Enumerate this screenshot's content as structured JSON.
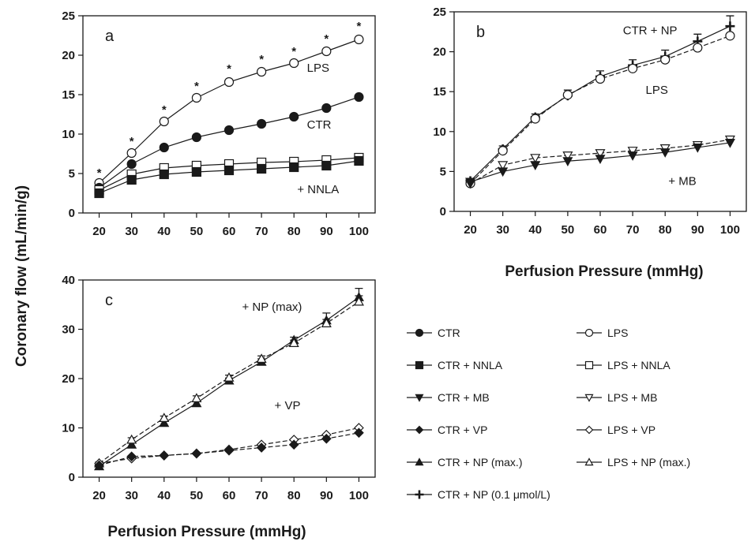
{
  "figure": {
    "ylabel": "Coronary flow (mL/min/g)",
    "xlabel": "Perfusion Pressure (mmHg)"
  },
  "legend": [
    {
      "label": "CTR",
      "marker": "circle",
      "fill": "filled"
    },
    {
      "label": "LPS",
      "marker": "circle",
      "fill": "open"
    },
    {
      "label": "CTR + NNLA",
      "marker": "square",
      "fill": "filled"
    },
    {
      "label": "LPS + NNLA",
      "marker": "square",
      "fill": "open"
    },
    {
      "label": "CTR + MB",
      "marker": "triangle-down",
      "fill": "filled"
    },
    {
      "label": "LPS + MB",
      "marker": "triangle-down",
      "fill": "open"
    },
    {
      "label": "CTR + VP",
      "marker": "diamond",
      "fill": "filled"
    },
    {
      "label": "LPS + VP",
      "marker": "diamond",
      "fill": "open"
    },
    {
      "label": "CTR + NP (max.)",
      "marker": "triangle-up",
      "fill": "filled"
    },
    {
      "label": "LPS + NP (max.)",
      "marker": "triangle-up",
      "fill": "open"
    },
    {
      "label": "CTR + NP (0.1 μmol/L)",
      "marker": "plus",
      "fill": "filled"
    }
  ],
  "chart_data": [
    {
      "type": "line",
      "panel": "a",
      "x": [
        20,
        30,
        40,
        50,
        60,
        70,
        80,
        90,
        100
      ],
      "xticks": [
        "20",
        "30",
        "40",
        "50",
        "60",
        "70",
        "80",
        "90",
        "100"
      ],
      "yticks": [
        "0",
        "5",
        "10",
        "15",
        "20",
        "25"
      ],
      "ylim": [
        0,
        25
      ],
      "series": [
        {
          "legend": "LPS",
          "marker": "circle",
          "fill": "open",
          "values": [
            3.8,
            7.6,
            11.6,
            14.6,
            16.6,
            17.9,
            19.0,
            20.5,
            22.0
          ]
        },
        {
          "legend": "CTR",
          "marker": "circle",
          "fill": "filled",
          "values": [
            3.2,
            6.2,
            8.3,
            9.6,
            10.5,
            11.3,
            12.2,
            13.3,
            14.7
          ]
        },
        {
          "legend": "LPS + NNLA",
          "marker": "square",
          "fill": "open",
          "values": [
            2.9,
            4.9,
            5.7,
            6.0,
            6.2,
            6.4,
            6.5,
            6.7,
            7.0
          ]
        },
        {
          "legend": "CTR + NNLA",
          "marker": "square",
          "fill": "filled",
          "values": [
            2.5,
            4.2,
            4.9,
            5.2,
            5.4,
            5.6,
            5.8,
            6.0,
            6.6
          ]
        }
      ],
      "significance_marks": {
        "symbol": "*",
        "x": [
          20,
          30,
          40,
          50,
          60,
          70,
          80,
          90,
          100
        ],
        "y": [
          5.2,
          9.2,
          13.2,
          16.2,
          18.4,
          19.6,
          20.6,
          22.2,
          23.8
        ]
      },
      "annotations": [
        {
          "text": "LPS",
          "x": 84,
          "y": 18.4
        },
        {
          "text": "CTR",
          "x": 84,
          "y": 11.2
        },
        {
          "text": "+ NNLA",
          "x": 81,
          "y": 3.0
        }
      ]
    },
    {
      "type": "line",
      "panel": "b",
      "x": [
        20,
        30,
        40,
        50,
        60,
        70,
        80,
        90,
        100
      ],
      "xticks": [
        "20",
        "30",
        "40",
        "50",
        "60",
        "70",
        "80",
        "90",
        "100"
      ],
      "yticks": [
        "0",
        "5",
        "10",
        "15",
        "20",
        "25"
      ],
      "ylim": [
        0,
        25
      ],
      "series": [
        {
          "legend": "CTR + NP (0.1 μmol/L)",
          "marker": "plus",
          "fill": "filled",
          "values": [
            3.8,
            7.8,
            11.8,
            14.5,
            16.9,
            18.3,
            19.4,
            21.3,
            23.2
          ],
          "error": [
            0.3,
            0.4,
            0.4,
            0.7,
            0.7,
            0.7,
            0.8,
            0.9,
            1.3
          ]
        },
        {
          "legend": "LPS",
          "marker": "circle",
          "fill": "open",
          "values": [
            3.5,
            7.6,
            11.6,
            14.6,
            16.6,
            17.9,
            19.0,
            20.5,
            22.0
          ]
        },
        {
          "legend": "LPS + MB",
          "marker": "triangle-down",
          "fill": "open",
          "values": [
            3.5,
            5.8,
            6.7,
            7.0,
            7.3,
            7.6,
            7.9,
            8.3,
            9.0
          ]
        },
        {
          "legend": "CTR + MB",
          "marker": "triangle-down",
          "fill": "filled",
          "values": [
            3.7,
            5.0,
            5.8,
            6.3,
            6.6,
            7.0,
            7.4,
            8.0,
            8.6
          ]
        }
      ],
      "annotations": [
        {
          "text": "CTR + NP",
          "x": 67,
          "y": 22.7
        },
        {
          "text": "LPS",
          "x": 74,
          "y": 15.2
        },
        {
          "text": "+ MB",
          "x": 81,
          "y": 3.8
        }
      ]
    },
    {
      "type": "line",
      "panel": "c",
      "x": [
        20,
        30,
        40,
        50,
        60,
        70,
        80,
        90,
        100
      ],
      "xticks": [
        "20",
        "30",
        "40",
        "50",
        "60",
        "70",
        "80",
        "90",
        "100"
      ],
      "yticks": [
        "0",
        "10",
        "20",
        "30",
        "40"
      ],
      "ylim": [
        0,
        40
      ],
      "series": [
        {
          "legend": "CTR + NP (max.)",
          "marker": "triangle-up",
          "fill": "filled",
          "values": [
            2.2,
            6.6,
            11.0,
            15.0,
            19.6,
            23.4,
            27.8,
            31.8,
            36.5
          ],
          "error": [
            0.3,
            0.4,
            0.4,
            0.5,
            0.5,
            0.6,
            0.6,
            1.5,
            1.8
          ]
        },
        {
          "legend": "LPS + NP (max.)",
          "marker": "triangle-up",
          "fill": "open",
          "values": [
            2.8,
            7.6,
            12.0,
            16.0,
            20.2,
            24.0,
            27.2,
            31.2,
            35.6
          ],
          "error": [
            0.3,
            0.4,
            0.4,
            0.5,
            0.5,
            0.6,
            0.6,
            0.8,
            1.2
          ]
        },
        {
          "legend": "LPS + VP",
          "marker": "diamond",
          "fill": "open",
          "values": [
            2.8,
            3.8,
            4.4,
            4.8,
            5.6,
            6.6,
            7.6,
            8.6,
            10.0
          ]
        },
        {
          "legend": "CTR + VP",
          "marker": "diamond",
          "fill": "filled",
          "values": [
            2.4,
            4.2,
            4.4,
            4.8,
            5.4,
            6.0,
            6.6,
            7.8,
            9.0
          ]
        }
      ],
      "annotations": [
        {
          "text": "+ NP (max)",
          "x": 64,
          "y": 34.6
        },
        {
          "text": "+ VP",
          "x": 74,
          "y": 14.6
        }
      ]
    }
  ]
}
